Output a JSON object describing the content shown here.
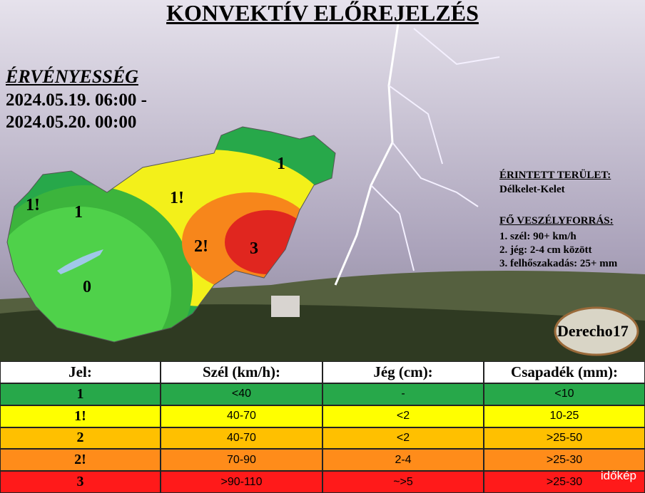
{
  "header": {
    "title": "KONVEKTÍV ELŐREJELZÉS"
  },
  "validity": {
    "heading": "ÉRVÉNYESSÉG",
    "from": "2024.05.19. 06:00 -",
    "to": "2024.05.20. 00:00"
  },
  "map": {
    "labels": [
      "1!",
      "1",
      "1!",
      "1",
      "2!",
      "3",
      "0"
    ]
  },
  "info": {
    "area_heading": "ÉRINTETT TERÜLET:",
    "area": "Délkelet-Kelet",
    "hazards_heading": "FŐ VESZÉLYFORRÁS:",
    "hazards": [
      "1. szél: 90+ km/h",
      "2. jég: 2-4 cm között",
      "3. felhőszakadás: 25+ mm"
    ]
  },
  "logo": "Derecho17",
  "table": {
    "columns": [
      "Jel:",
      "Szél (km/h):",
      "Jég (cm):",
      "Csapadék (mm):"
    ],
    "rows": [
      [
        "1",
        "<40",
        "-",
        "<10"
      ],
      [
        "1!",
        "40-70",
        "<2",
        "10-25"
      ],
      [
        "2",
        "40-70",
        "<2",
        ">25-50"
      ],
      [
        "2!",
        "70-90",
        "2-4",
        ">25-30"
      ],
      [
        "3",
        ">90-110",
        "~>5",
        ">25-30"
      ]
    ]
  },
  "watermark": "időkép"
}
